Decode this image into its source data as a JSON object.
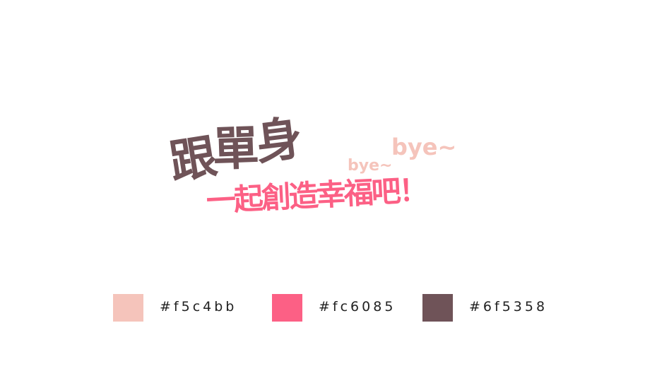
{
  "logo": {
    "line1": [
      "跟",
      "單",
      "身"
    ],
    "bye_small": "bye~",
    "bye_large": "bye~",
    "line2": "一起創造幸福吧！"
  },
  "colors": {
    "light_pink": "#f5c4bb",
    "hot_pink": "#fc6085",
    "mauve_brown": "#6f5358"
  },
  "palette": [
    {
      "color": "#f5c4bb",
      "label": "#f5c4bb"
    },
    {
      "color": "#fc6085",
      "label": "#fc6085"
    },
    {
      "color": "#6f5358",
      "label": "#6f5358"
    }
  ]
}
